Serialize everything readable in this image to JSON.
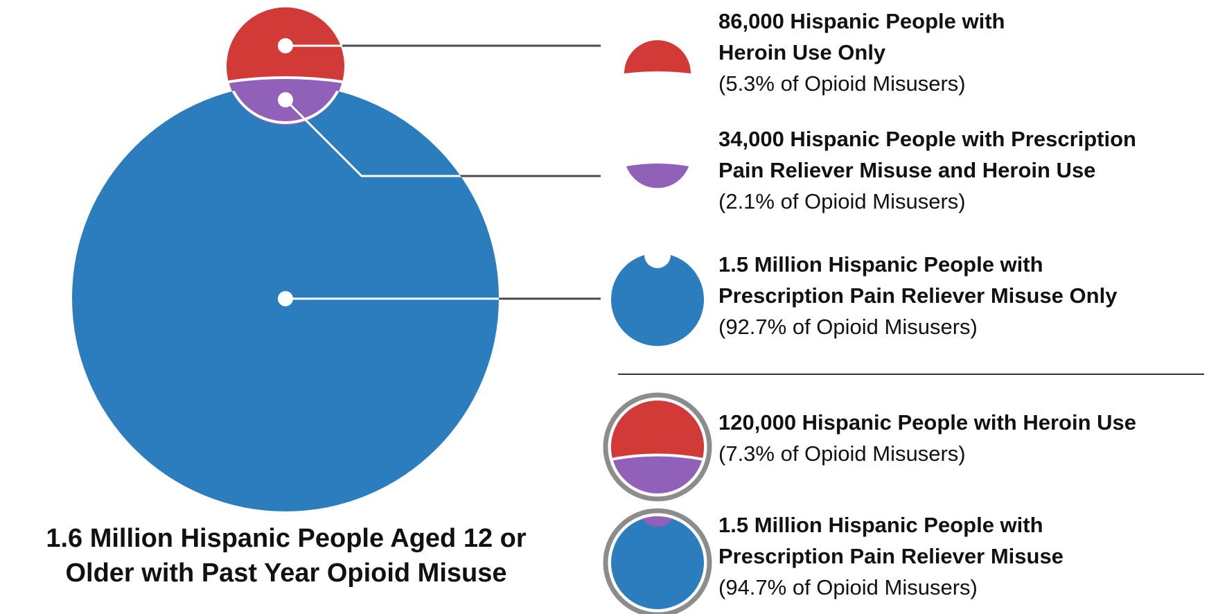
{
  "colors": {
    "heroin_only": "#d13a36",
    "both": "#9160b8",
    "prescription_only": "#2c7dbd",
    "leader_line": "#4a4a4a",
    "ring": "#8c8c8c"
  },
  "main": {
    "caption_line1": "1.6 Million Hispanic People Aged 12 or",
    "caption_line2": "Older with Past Year Opioid Misuse"
  },
  "legend": {
    "heroin_only": {
      "line1": "86,000 Hispanic People with",
      "line2": "Heroin Use Only",
      "pct": "(5.3% of Opioid Misusers)"
    },
    "both": {
      "line1": "34,000 Hispanic People with Prescription",
      "line2": "Pain Reliever Misuse and Heroin Use",
      "pct": "(2.1% of Opioid Misusers)"
    },
    "prescription_only": {
      "line1": "1.5 Million Hispanic People with",
      "line2": "Prescription Pain Reliever Misuse Only",
      "pct": "(92.7% of Opioid Misusers)"
    },
    "heroin_total": {
      "line1": "120,000 Hispanic People with Heroin Use",
      "pct": "(7.3% of Opioid Misusers)"
    },
    "prescription_total": {
      "line1": "1.5 Million Hispanic People with",
      "line2": "Prescription Pain Reliever Misuse",
      "pct": "(94.7% of Opioid Misusers)"
    }
  }
}
